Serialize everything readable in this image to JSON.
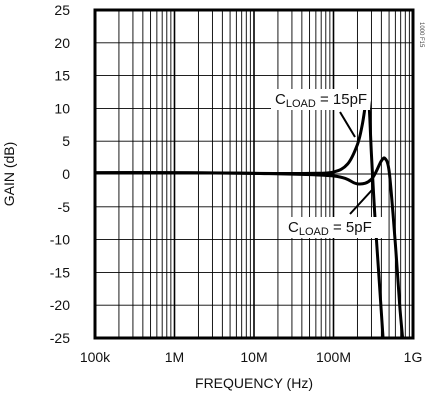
{
  "chart_data": {
    "type": "line",
    "xlabel": "FREQUENCY (Hz)",
    "ylabel": "GAIN (dB)",
    "x_scale": "log",
    "xlim": [
      100000,
      1000000000
    ],
    "ylim": [
      -25,
      25
    ],
    "grid": true,
    "x_ticks": [
      {
        "value": 100000,
        "label": "100k"
      },
      {
        "value": 1000000,
        "label": "1M"
      },
      {
        "value": 10000000,
        "label": "10M"
      },
      {
        "value": 100000000,
        "label": "100M"
      },
      {
        "value": 1000000000,
        "label": "1G"
      }
    ],
    "y_ticks": [
      25,
      20,
      15,
      10,
      5,
      0,
      -5,
      -10,
      -15,
      -20,
      -25
    ],
    "series": [
      {
        "name": "CLOAD = 15pF",
        "x": [
          100000,
          1000000,
          10000000,
          50000000,
          100000000,
          150000000,
          200000000,
          230000000,
          260000000,
          280000000,
          300000000,
          330000000,
          370000000,
          420000000
        ],
        "y": [
          0.2,
          0.2,
          0.1,
          0.1,
          0.3,
          1.5,
          4.5,
          7.5,
          11.3,
          10.5,
          3.0,
          -6.0,
          -15.0,
          -25.0
        ]
      },
      {
        "name": "CLOAD = 5pF",
        "x": [
          100000,
          1000000,
          10000000,
          100000000,
          200000000,
          300000000,
          400000000,
          450000000,
          500000000,
          560000000,
          620000000,
          680000000,
          740000000
        ],
        "y": [
          0.2,
          0.2,
          0.1,
          -0.3,
          -1.5,
          -0.8,
          2.0,
          2.3,
          0.5,
          -6.0,
          -13.0,
          -20.0,
          -25.0
        ]
      }
    ],
    "annotations": [
      {
        "label_main": "C",
        "label_sub": "LOAD",
        "label_rest": " = 15pF",
        "series": 0
      },
      {
        "label_main": "C",
        "label_sub": "LOAD",
        "label_rest": " = 5pF",
        "series": 1
      }
    ],
    "side_text": "1000 F15"
  }
}
